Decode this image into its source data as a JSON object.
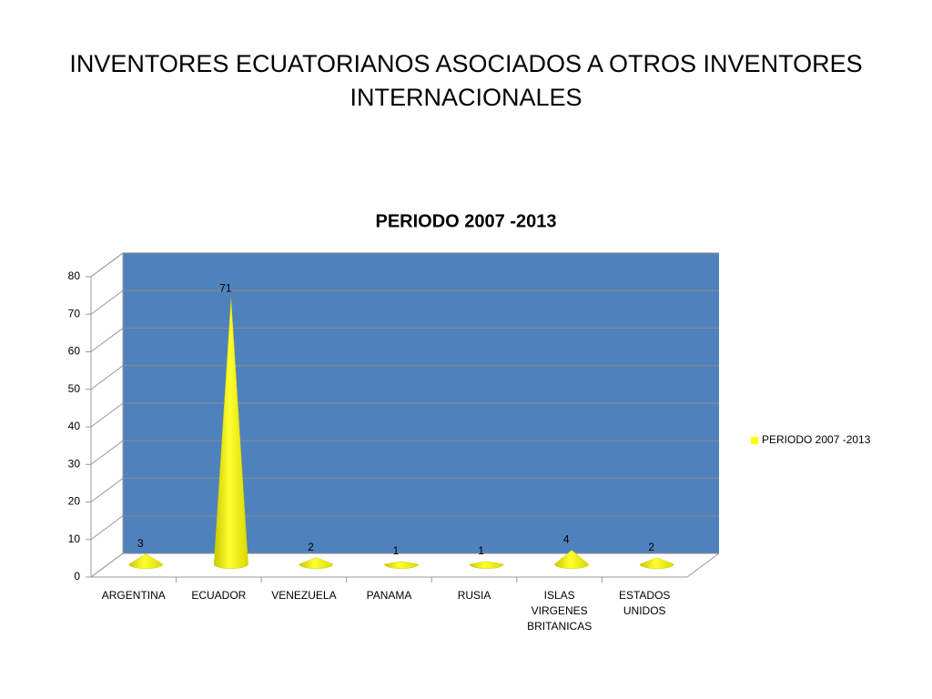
{
  "slide": {
    "title": "INVENTORES ECUATORIANOS ASOCIADOS A OTROS INVENTORES INTERNACIONALES"
  },
  "chart_data": {
    "type": "cone",
    "title": "PERIODO 2007 -2013",
    "categories": [
      "ARGENTINA",
      "ECUADOR",
      "VENEZUELA",
      "PANAMA",
      "RUSIA",
      "ISLAS VIRGENES BRITANICAS",
      "ESTADOS UNIDOS"
    ],
    "series": [
      {
        "name": "PERIODO 2007 -2013",
        "color": "#ffff00",
        "values": [
          3,
          71,
          2,
          1,
          1,
          4,
          2
        ]
      }
    ],
    "ylim": [
      0,
      80
    ],
    "yticks": [
      0,
      10,
      20,
      30,
      40,
      50,
      60,
      70,
      80
    ],
    "grid": true,
    "legend": "right"
  }
}
